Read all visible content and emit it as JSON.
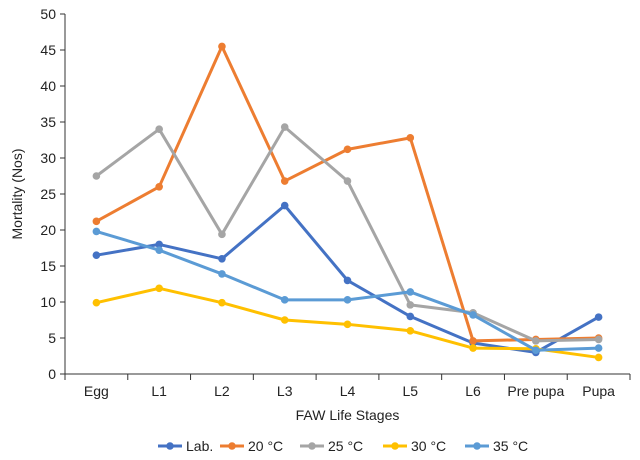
{
  "chart_data": {
    "type": "line",
    "xlabel": "FAW Life Stages",
    "ylabel": "Mortality (Nos)",
    "ylim": [
      0,
      50
    ],
    "yticks": [
      0,
      5,
      10,
      15,
      20,
      25,
      30,
      35,
      40,
      45,
      50
    ],
    "grid": false,
    "legend_position": "bottom",
    "categories": [
      "Egg",
      "L1",
      "L2",
      "L3",
      "L4",
      "L5",
      "L6",
      "Pre pupa",
      "Pupa"
    ],
    "series": [
      {
        "name": "Lab.",
        "color": "#4472C4",
        "values": [
          16.5,
          18,
          16,
          23.4,
          13,
          8,
          4.3,
          3,
          7.9
        ]
      },
      {
        "name": "20 °C",
        "color": "#ED7D31",
        "values": [
          21.2,
          26,
          45.5,
          26.8,
          31.2,
          32.8,
          4.6,
          4.8,
          5
        ]
      },
      {
        "name": "25 °C",
        "color": "#A5A5A5",
        "values": [
          27.5,
          34,
          19.4,
          34.3,
          26.8,
          9.6,
          8.5,
          4.6,
          4.8
        ]
      },
      {
        "name": "30 °C",
        "color": "#FFC000",
        "values": [
          9.9,
          11.9,
          9.9,
          7.5,
          6.9,
          6,
          3.6,
          3.5,
          2.3
        ]
      },
      {
        "name": "35 °C",
        "color": "#5B9BD5",
        "values": [
          19.8,
          17.2,
          13.9,
          10.3,
          10.3,
          11.4,
          8.2,
          3.3,
          3.6
        ]
      }
    ]
  }
}
